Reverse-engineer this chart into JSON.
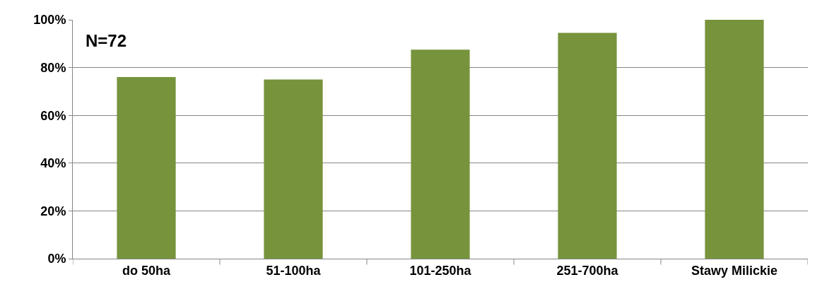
{
  "chart_data": {
    "type": "bar",
    "categories": [
      "do 50ha",
      "51-100ha",
      "101-250ha",
      "251-700ha",
      "Stawy Milickie"
    ],
    "values": [
      76,
      75,
      87.5,
      94.5,
      100
    ],
    "color": "#77933c",
    "ylim": [
      0,
      100
    ],
    "yticks": [
      {
        "value": 0,
        "label": "0%"
      },
      {
        "value": 20,
        "label": "20%"
      },
      {
        "value": 40,
        "label": "40%"
      },
      {
        "value": 60,
        "label": "60%"
      },
      {
        "value": 80,
        "label": "80%"
      },
      {
        "value": 100,
        "label": "100%"
      }
    ],
    "grid": "y",
    "annotations": [
      "N=72"
    ]
  }
}
